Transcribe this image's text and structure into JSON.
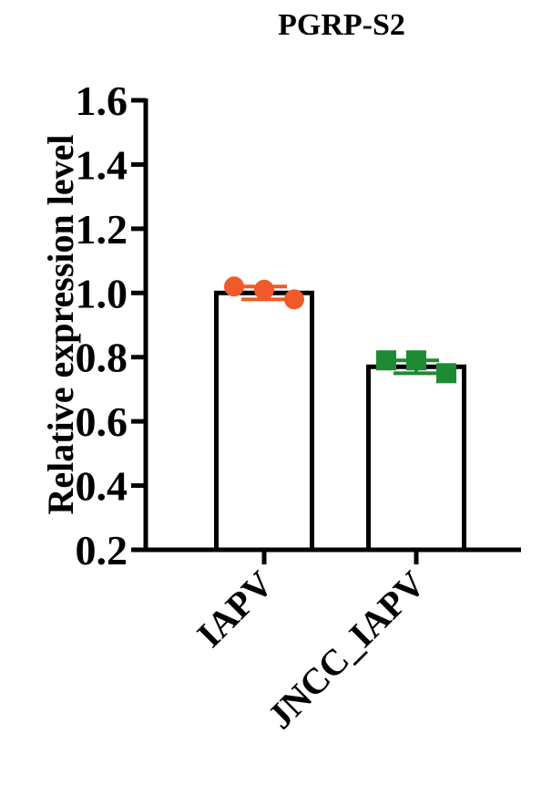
{
  "chart_data": {
    "type": "bar",
    "title": "PGRP-S2",
    "y_label": "Relative expression level",
    "categories": [
      "IAPV",
      "JNCC_IAPV"
    ],
    "values": [
      1.0,
      0.77
    ],
    "errors": [
      0.02,
      0.02
    ],
    "points": [
      [
        1.02,
        1.01,
        0.98
      ],
      [
        0.79,
        0.79,
        0.75
      ]
    ],
    "point_colors": [
      "#f05a28",
      "#1e8a34"
    ],
    "point_shapes": [
      "circle",
      "square"
    ],
    "color": "#ffffff",
    "ylim": [
      0.2,
      1.6
    ],
    "yticks": [
      0.2,
      0.4,
      0.6,
      0.8,
      {
        "value": 1.0,
        "label": "1.0"
      },
      1.2,
      1.4,
      1.6
    ]
  }
}
